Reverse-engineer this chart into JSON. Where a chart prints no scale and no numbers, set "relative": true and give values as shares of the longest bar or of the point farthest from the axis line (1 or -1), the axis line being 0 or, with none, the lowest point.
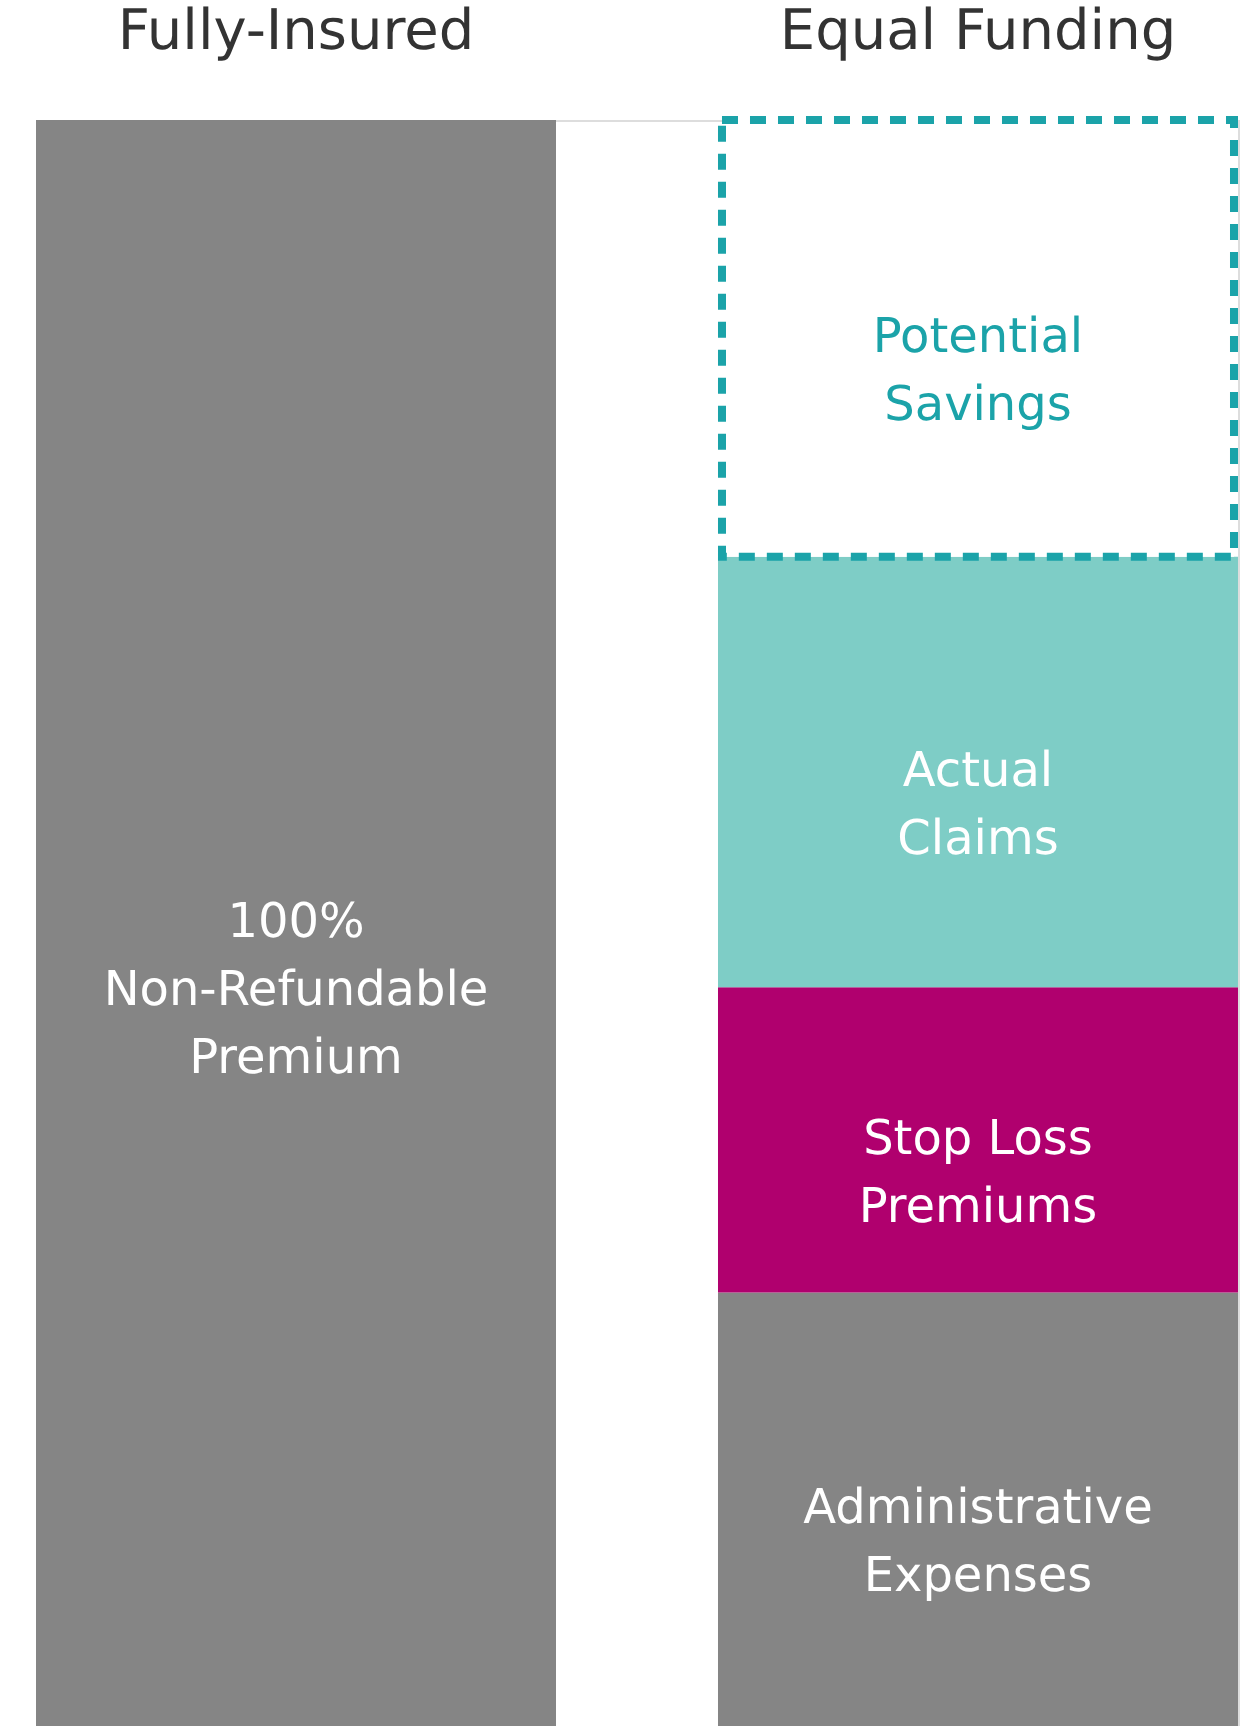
{
  "chart_data": {
    "type": "bar",
    "stacked": true,
    "relative": true,
    "tick_labels": "x",
    "categories": [
      "Fully-Insured",
      "Equal Funding"
    ],
    "series": [
      {
        "name": "100%\nNon-Refundable\nPremium",
        "color": "#858585",
        "values": [
          1,
          null
        ]
      },
      {
        "name": "Administrative\nExpenses",
        "color": "#858585",
        "values": [
          null,
          0.27
        ]
      },
      {
        "name": "Stop Loss\nPremiums",
        "color": "#b0006e",
        "values": [
          null,
          0.19
        ]
      },
      {
        "name": "Actual\nClaims",
        "color": "#7ecdc6",
        "values": [
          null,
          0.268
        ]
      },
      {
        "name": "Potential\nSavings",
        "color": "#1ba3a9",
        "values": [
          null,
          0.272
        ],
        "line_style": "dashed"
      }
    ]
  }
}
